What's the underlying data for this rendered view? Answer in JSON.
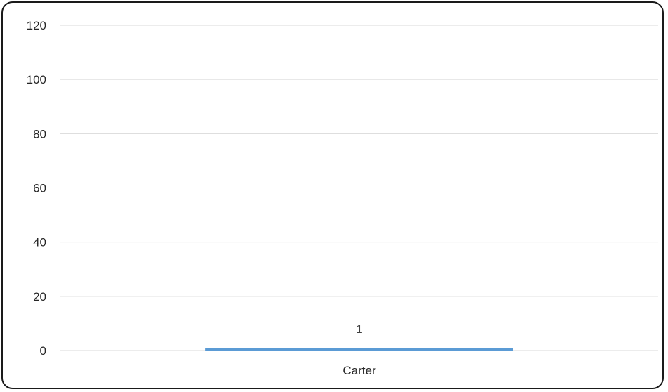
{
  "chart_data": {
    "type": "bar",
    "title": "",
    "xlabel": "",
    "ylabel": "",
    "categories": [
      "Carter"
    ],
    "series": [
      {
        "values": [
          1
        ],
        "color": "#5b9bd5"
      }
    ],
    "data_labels": [
      "1"
    ],
    "ylim": [
      0,
      120
    ],
    "yticks": [
      0,
      20,
      40,
      60,
      80,
      100,
      120
    ],
    "ytick_labels": [
      "0",
      "20",
      "40",
      "60",
      "80",
      "100",
      "120"
    ],
    "grid": true,
    "gridline_color": "#d9d9d9",
    "legend": "none"
  }
}
